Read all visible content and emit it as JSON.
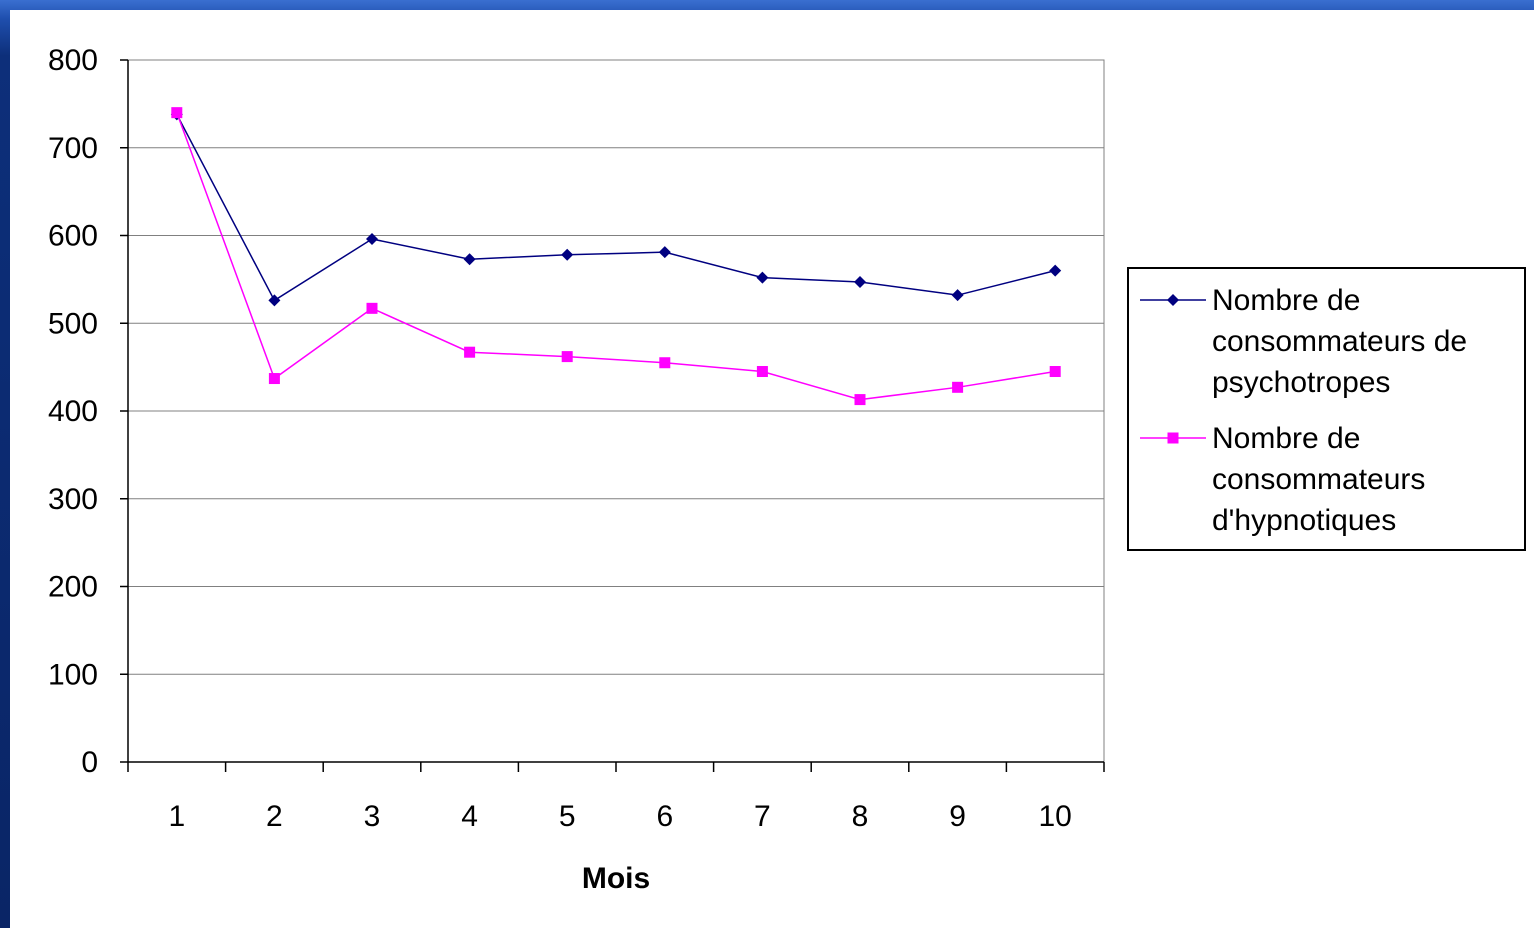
{
  "chart_data": {
    "type": "line",
    "title": "",
    "xlabel": "Mois",
    "ylabel": "",
    "categories": [
      "1",
      "2",
      "3",
      "4",
      "5",
      "6",
      "7",
      "8",
      "9",
      "10"
    ],
    "ylim": [
      0,
      800
    ],
    "yticks": [
      "0",
      "100",
      "200",
      "300",
      "400",
      "500",
      "600",
      "700",
      "800"
    ],
    "grid": true,
    "legend_position": "right",
    "series": [
      {
        "name": "Nombre de consommateurs de psychotropes",
        "legend_lines": [
          "Nombre de",
          "consommateurs de",
          "psychotropes"
        ],
        "color": "#000080",
        "marker": "diamond",
        "values": [
          738,
          526,
          596,
          573,
          578,
          581,
          552,
          547,
          532,
          560
        ]
      },
      {
        "name": "Nombre de consommateurs d'hypnotiques",
        "legend_lines": [
          "Nombre de",
          "consommateurs",
          "d'hypnotiques"
        ],
        "color": "#ff00ff",
        "marker": "square",
        "values": [
          740,
          437,
          517,
          467,
          462,
          455,
          445,
          413,
          427,
          445
        ]
      }
    ]
  },
  "colors": {
    "background": "#0a2566",
    "panel": "#ffffff",
    "gridline": "#808080"
  }
}
